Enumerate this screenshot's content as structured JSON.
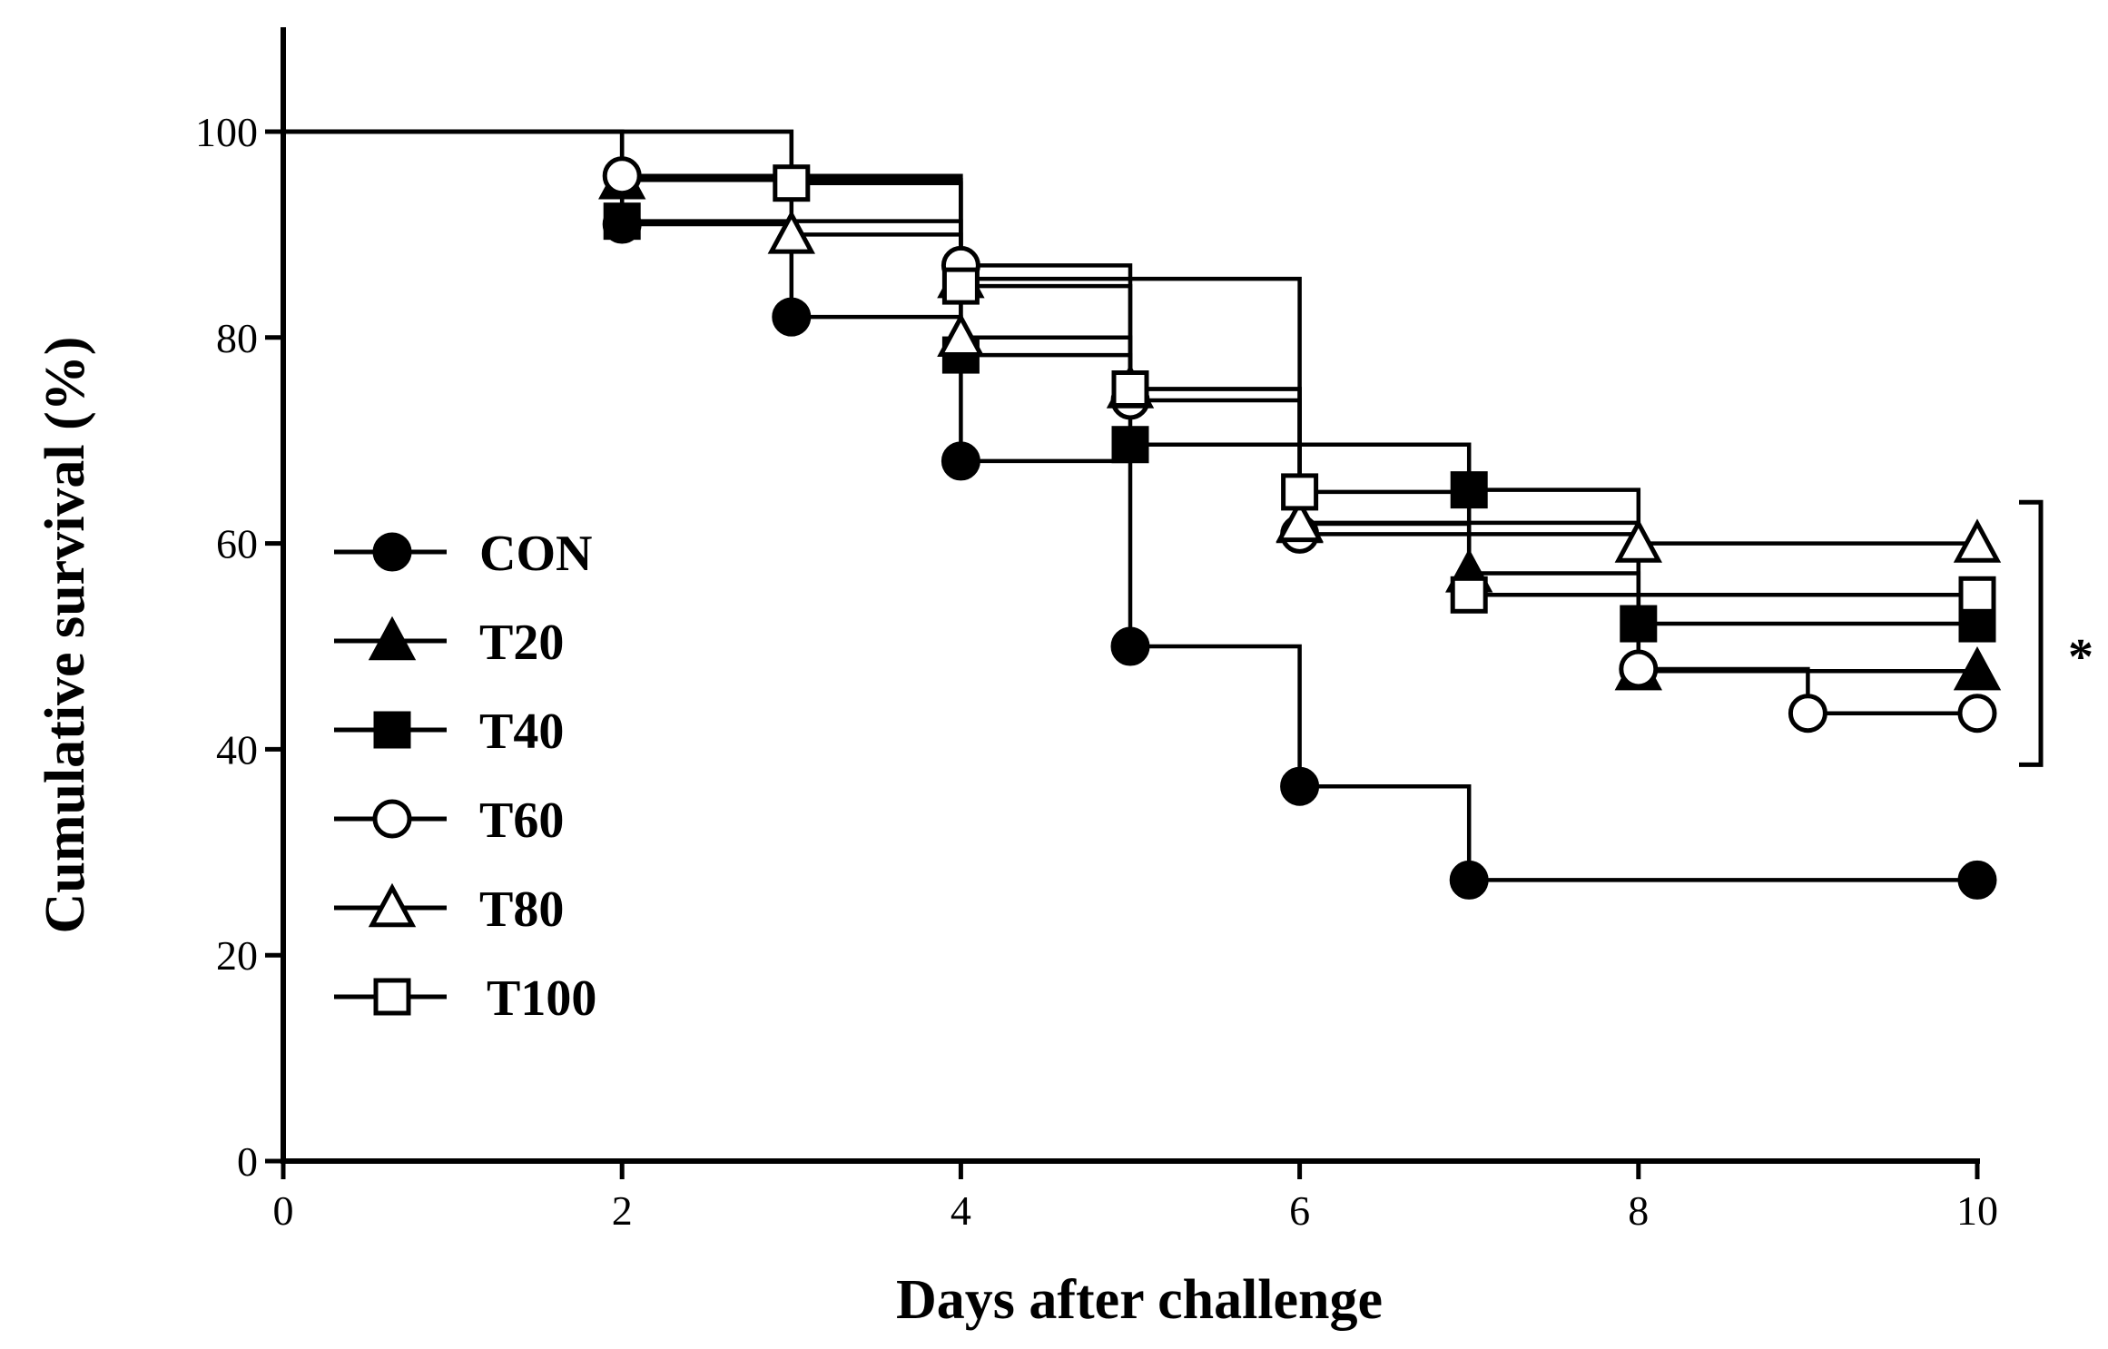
{
  "chart_data": {
    "type": "line",
    "subtype": "kaplan-meier step plot",
    "title": "",
    "xlabel": "Days after challenge",
    "ylabel": "Cumulative survival (%)",
    "xlim": [
      0,
      10
    ],
    "ylim": [
      0,
      110
    ],
    "xticks": [
      0,
      2,
      4,
      6,
      8,
      10
    ],
    "yticks": [
      0,
      20,
      40,
      60,
      80,
      100
    ],
    "grid": false,
    "legend_position": "left",
    "series": [
      {
        "name": "CON",
        "marker": "circle-filled",
        "x": [
          0,
          2,
          3,
          4,
          5,
          6,
          7,
          10
        ],
        "y": [
          100,
          91,
          82,
          68,
          50,
          36.4,
          27.3,
          27.3
        ]
      },
      {
        "name": "T20",
        "marker": "triangle-filled",
        "x": [
          0,
          2,
          4,
          6,
          7,
          8,
          10
        ],
        "y": [
          100,
          95.3,
          85.7,
          61.9,
          57.1,
          47.6,
          47.6
        ]
      },
      {
        "name": "T40",
        "marker": "square-filled",
        "x": [
          0,
          2,
          4,
          5,
          7,
          8,
          10
        ],
        "y": [
          100,
          91.3,
          78.3,
          69.6,
          65.2,
          52.2,
          52.2
        ]
      },
      {
        "name": "T60",
        "marker": "circle-open",
        "x": [
          0,
          2,
          4,
          5,
          6,
          8,
          9,
          10
        ],
        "y": [
          100,
          95.7,
          87,
          73.9,
          60.9,
          47.8,
          43.5,
          43.5
        ]
      },
      {
        "name": "T80",
        "marker": "triangle-open",
        "x": [
          0,
          3,
          4,
          5,
          6,
          8,
          10
        ],
        "y": [
          100,
          90,
          80,
          75,
          62,
          60,
          60
        ]
      },
      {
        "name": "T100",
        "marker": "square-open",
        "x": [
          0,
          3,
          4,
          5,
          6,
          7,
          10
        ],
        "y": [
          100,
          95,
          85,
          75,
          65,
          55,
          55
        ]
      }
    ],
    "annotations": [
      {
        "type": "significance-bracket",
        "label": "*",
        "y_range": [
          38.5,
          64
        ]
      }
    ]
  }
}
